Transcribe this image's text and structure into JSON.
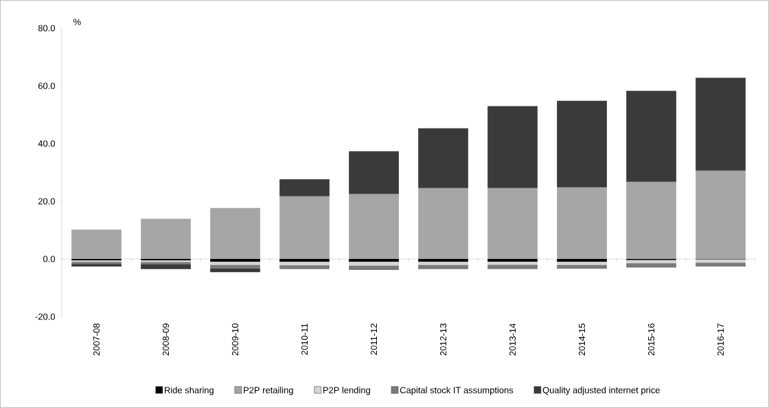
{
  "chart_data": {
    "type": "bar",
    "stacked": true,
    "ylabel": "%",
    "categories": [
      "2007-08",
      "2008-09",
      "2009-10",
      "2010-11",
      "2011-12",
      "2012-13",
      "2013-14",
      "2014-15",
      "2015-16",
      "2016-17"
    ],
    "series": [
      {
        "name": "Ride sharing",
        "color": "#000000",
        "values": [
          -0.5,
          -0.5,
          -1.0,
          -1.0,
          -1.0,
          -1.0,
          -1.0,
          -1.0,
          -0.4,
          -0.2
        ]
      },
      {
        "name": "P2P retailing",
        "color": "#a6a6a6",
        "values": [
          10.2,
          13.9,
          17.7,
          21.7,
          22.5,
          24.6,
          24.6,
          24.8,
          26.7,
          30.6
        ]
      },
      {
        "name": "P2P lending",
        "color": "#d4d4d4",
        "values": [
          -0.5,
          -0.6,
          -1.1,
          -1.2,
          -1.3,
          -1.1,
          -1.0,
          -1.1,
          -1.1,
          -1.1
        ]
      },
      {
        "name": "Capital stock IT assumptions",
        "color": "#7a7a7a",
        "values": [
          -0.7,
          -0.8,
          -1.2,
          -1.3,
          -1.5,
          -1.4,
          -1.5,
          -1.3,
          -1.5,
          -1.3
        ]
      },
      {
        "name": "Quality adjusted internet price",
        "color": "#3a3a3a",
        "values": [
          -0.9,
          -1.6,
          -1.3,
          5.9,
          14.8,
          20.7,
          28.4,
          30.0,
          31.6,
          32.2
        ]
      }
    ],
    "ylim": [
      -20,
      80
    ],
    "yticks": [
      {
        "value": -20,
        "label": "-20.0"
      },
      {
        "value": 0,
        "label": "0.0"
      },
      {
        "value": 20,
        "label": "20.0"
      },
      {
        "value": 40,
        "label": "40.0"
      },
      {
        "value": 60,
        "label": "60.0"
      },
      {
        "value": 80,
        "label": "80.0"
      }
    ],
    "legend": "bottom"
  }
}
